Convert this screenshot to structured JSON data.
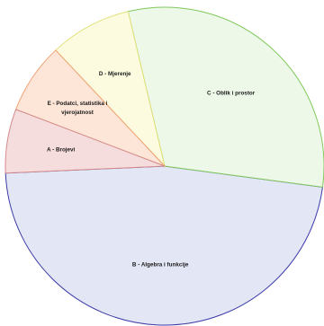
{
  "chart_data": {
    "type": "pie",
    "start_angle_deg": 182.5,
    "direction": "counterclockwise",
    "slices": [
      {
        "label": "B - Algebra i funkcije",
        "value": 47.2,
        "fill": "#e3e6f5",
        "stroke": "#3a3aa8",
        "label_lines": [
          "B - Algebra i funkcije"
        ]
      },
      {
        "label": "C - Oblik i prostor",
        "value": 30.8,
        "fill": "#eef8e8",
        "stroke": "#7ec95a",
        "label_lines": [
          "C - Oblik i prostor"
        ]
      },
      {
        "label": "D - Mjerenje",
        "value": 8.3,
        "fill": "#fcfbe0",
        "stroke": "#e2e07a",
        "label_lines": [
          "D - Mjerenje"
        ]
      },
      {
        "label": "E - Podatci, statistika i vjerojatnost",
        "value": 7.2,
        "fill": "#fde6d8",
        "stroke": "#f0a070",
        "label_lines": [
          "E - Podatci, statistika i",
          "vjerojatnost"
        ]
      },
      {
        "label": "A - Brojevi",
        "value": 6.5,
        "fill": "#f6dddd",
        "stroke": "#d48a8a",
        "label_lines": [
          "A - Brojevi"
        ]
      }
    ]
  }
}
